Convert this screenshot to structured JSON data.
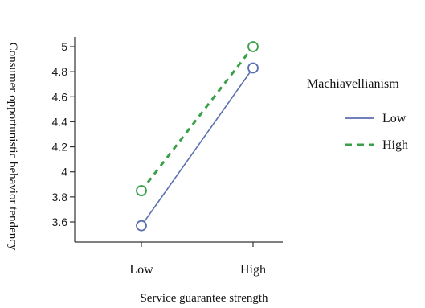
{
  "chart_data": {
    "type": "line",
    "categories": [
      "Low",
      "High"
    ],
    "xlabel": "Service guarantee strength",
    "ylabel": "Consumer opportunistic behavior tendency",
    "ylim": [
      3.5,
      5.05
    ],
    "y_ticks": [
      3.6,
      3.8,
      4,
      4.2,
      4.4,
      4.6,
      4.8,
      5
    ],
    "y_tick_labels": [
      "3.6",
      "3.8",
      "4",
      "4.2",
      "4.4",
      "4.6",
      "4.8",
      "5"
    ],
    "grid": false,
    "legend": {
      "title": "Machiavellianism",
      "placement": "right"
    },
    "series": [
      {
        "name": "Low",
        "values": [
          3.57,
          4.83
        ],
        "color": "#5b6fb0",
        "line_style": "solid",
        "marker": "open-circle"
      },
      {
        "name": "High",
        "values": [
          3.85,
          5.0
        ],
        "color": "#3aa04a",
        "line_style": "dashed",
        "marker": "open-circle"
      }
    ]
  }
}
